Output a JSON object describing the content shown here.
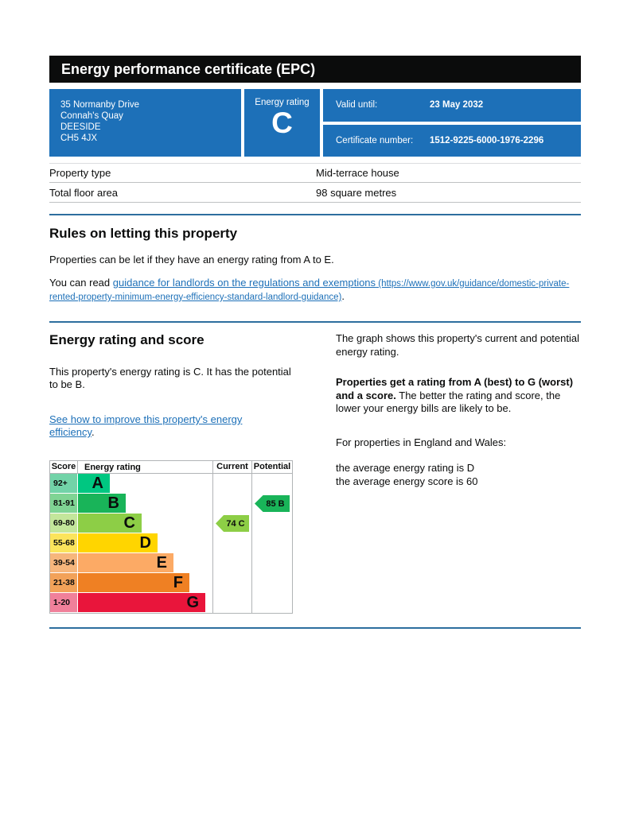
{
  "page": {
    "title": "Energy performance certificate (EPC)"
  },
  "summary": {
    "address_lines": [
      "35 Normanby Drive",
      "Connah's Quay",
      "DEESIDE",
      "CH5 4JX"
    ],
    "energy_rating_label": "Energy rating",
    "energy_rating_value": "C",
    "valid_until_label": "Valid until:",
    "valid_until_value": "23 May 2032",
    "certificate_number_label": "Certificate number:",
    "certificate_number_value": "1512-9225-6000-1976-2296"
  },
  "facts": {
    "rows": [
      {
        "label": "Property type",
        "value": "Mid-terrace house"
      },
      {
        "label": "Total floor area",
        "value": "98 square metres"
      }
    ]
  },
  "rules": {
    "heading": "Rules on letting this property",
    "paragraph": "Properties can be let if they have an energy rating from A to E.",
    "read_prefix": "You can read ",
    "link_text": "guidance for landlords on the regulations and exemptions",
    "link_url_text": " (https://www.gov.uk/guidance/domestic-private-rented-property-minimum-energy-efficiency-standard-landlord-guidance)",
    "suffix": "."
  },
  "rating_section": {
    "heading": "Energy rating and score",
    "intro": "This property's energy rating is C. It has the potential to be B.",
    "improve_link_text": "See how to improve this property's energy efficiency",
    "improve_suffix": ".",
    "graph_intro": "The graph shows this property's current and potential energy rating.",
    "explain_bold": "Properties get a rating from A (best) to G (worst) and a score.",
    "explain_rest": " The better the rating and score, the lower your energy bills are likely to be.",
    "england_wales": "For properties in England and Wales:",
    "avg_rating": "the average energy rating is D",
    "avg_score": "the average energy score is 60"
  },
  "chart_data": {
    "type": "bar",
    "title": "EPC energy rating bands",
    "headers": [
      "Score",
      "Energy rating",
      "Current",
      "Potential"
    ],
    "bands": [
      {
        "score": "92+",
        "letter": "A",
        "color": "#00c781",
        "tint": "#72d3a8"
      },
      {
        "score": "81-91",
        "letter": "B",
        "color": "#19b459",
        "tint": "#7fd494"
      },
      {
        "score": "69-80",
        "letter": "C",
        "color": "#8dce46",
        "tint": "#c3e69b"
      },
      {
        "score": "55-68",
        "letter": "D",
        "color": "#ffd500",
        "tint": "#fbe45c"
      },
      {
        "score": "39-54",
        "letter": "E",
        "color": "#fcaa65",
        "tint": "#f6b67c"
      },
      {
        "score": "21-38",
        "letter": "F",
        "color": "#ef8023",
        "tint": "#f2a259"
      },
      {
        "score": "1-20",
        "letter": "G",
        "color": "#e9153b",
        "tint": "#f0809a"
      }
    ],
    "current": {
      "score": 74,
      "band": "C",
      "band_index": 2,
      "label": "74 C"
    },
    "potential": {
      "score": 85,
      "band": "B",
      "band_index": 1,
      "label": "85 B"
    }
  },
  "colors": {
    "govuk_blue": "#1d70b8",
    "header_black": "#0b0c0c",
    "divider_blue": "#2d6e9e",
    "border_grey": "#b1b4b6",
    "link_blue": "#1d70b8"
  }
}
